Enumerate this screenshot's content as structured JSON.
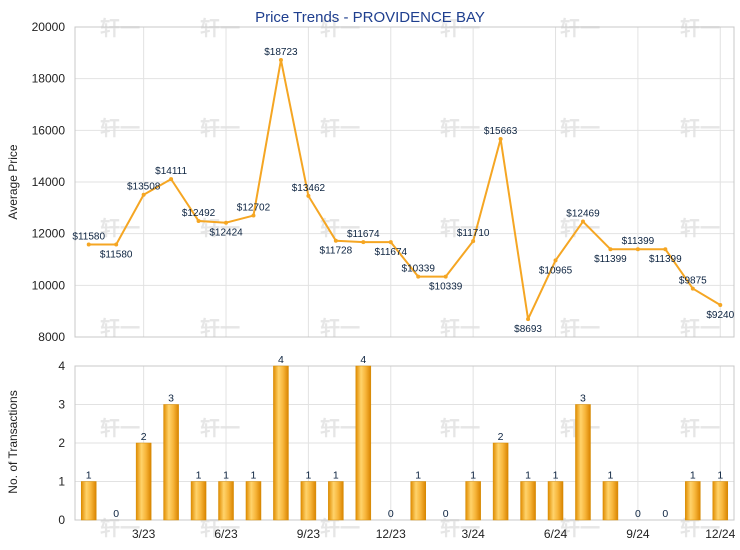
{
  "chart_data": [
    {
      "type": "line",
      "title": "Price Trends - PROVIDENCE BAY",
      "ylabel": "Average Price",
      "xlabel": "",
      "ylim": [
        8000,
        20000
      ],
      "yticks": [
        8000,
        10000,
        12000,
        14000,
        16000,
        18000,
        20000
      ],
      "grid": true,
      "line_color": "#f5a623",
      "series": [
        {
          "values": [
            11580,
            11580,
            13508,
            14111,
            12492,
            12424,
            12702,
            18723,
            13462,
            11728,
            11674,
            11674,
            10339,
            10339,
            11710,
            15663,
            8693,
            10965,
            12469,
            11399,
            11399,
            11399,
            9875,
            9240
          ],
          "labels": [
            "$11580",
            "$11580",
            "$13508",
            "$14111",
            "$12492",
            "$12424",
            "$12702",
            "$18723",
            "$13462",
            "$11728",
            "$11674",
            "$11674",
            "$10339",
            "$10339",
            "$11710",
            "$15663",
            "$8693",
            "$10965",
            "$12469",
            "$11399",
            "$11399",
            "$11399",
            "$9875",
            "$9240"
          ]
        }
      ]
    },
    {
      "type": "bar",
      "ylabel": "No. of Transactions",
      "ylim": [
        0,
        4
      ],
      "yticks": [
        0,
        1,
        2,
        3,
        4
      ],
      "grid": true,
      "bar_color": "#f5a623",
      "x_tick_labels": [
        "3/23",
        "6/23",
        "9/23",
        "12/23",
        "3/24",
        "6/24",
        "9/24",
        "12/24"
      ],
      "values": [
        1,
        0,
        2,
        3,
        1,
        1,
        1,
        4,
        1,
        1,
        4,
        0,
        1,
        0,
        1,
        2,
        1,
        1,
        3,
        1,
        0,
        0,
        1,
        1
      ]
    }
  ],
  "watermark": "轩一"
}
